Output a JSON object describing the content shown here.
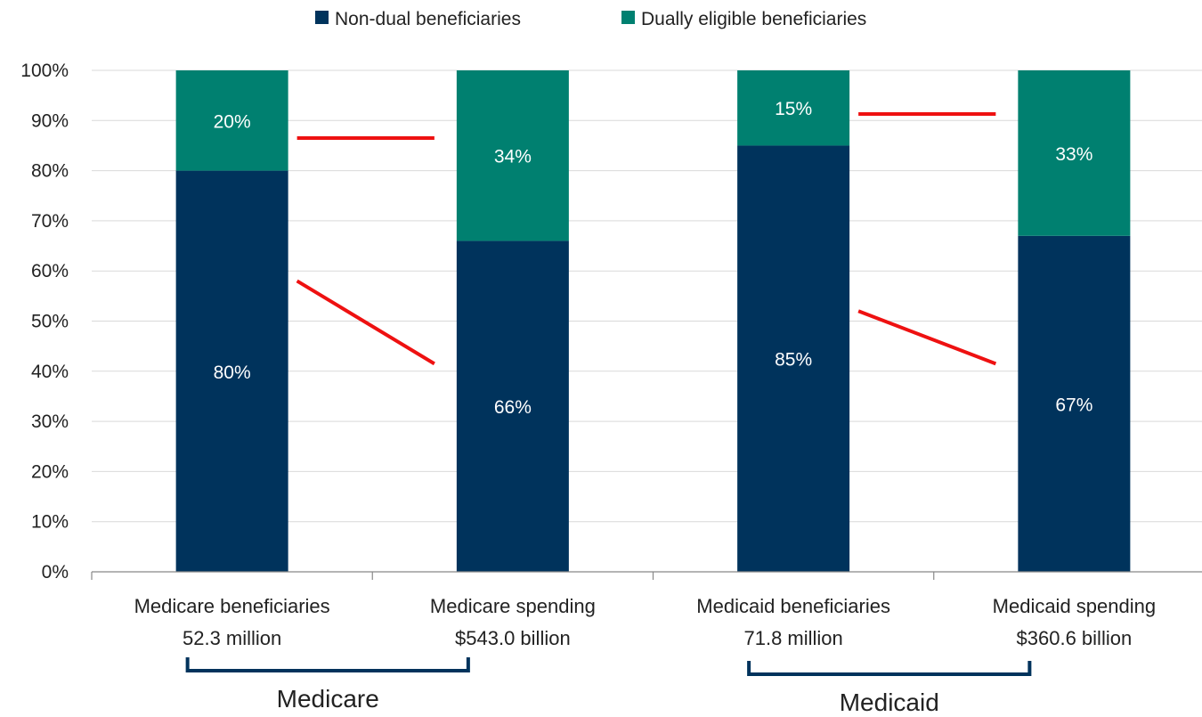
{
  "chart_data": {
    "type": "bar",
    "stacked": true,
    "normalized_percent": true,
    "categories": [
      {
        "line1": "Medicare beneficiaries",
        "line2": "52.3 million"
      },
      {
        "line1": "Medicare spending",
        "line2": "$543.0 billion"
      },
      {
        "line1": "Medicaid beneficiaries",
        "line2": "71.8 million"
      },
      {
        "line1": "Medicaid spending",
        "line2": "$360.6 billion"
      }
    ],
    "series": [
      {
        "name": "Non-dual beneficiaries",
        "color": "#00335c",
        "values": [
          80,
          66,
          85,
          67
        ],
        "labels": [
          "80%",
          "66%",
          "85%",
          "67%"
        ]
      },
      {
        "name": "Dually eligible beneficiaries",
        "color": "#008070",
        "values": [
          20,
          34,
          15,
          33
        ],
        "labels": [
          "20%",
          "34%",
          "15%",
          "33%"
        ]
      }
    ],
    "ylim": [
      0,
      100
    ],
    "yticks": [
      {
        "value": 0,
        "label": "0%"
      },
      {
        "value": 10,
        "label": "10%"
      },
      {
        "value": 20,
        "label": "20%"
      },
      {
        "value": 30,
        "label": "30%"
      },
      {
        "value": 40,
        "label": "40%"
      },
      {
        "value": 50,
        "label": "50%"
      },
      {
        "value": 60,
        "label": "60%"
      },
      {
        "value": 70,
        "label": "70%"
      },
      {
        "value": 80,
        "label": "80%"
      },
      {
        "value": 90,
        "label": "90%"
      },
      {
        "value": 100,
        "label": "100%"
      }
    ],
    "grid": true,
    "legend_position": "top-center",
    "groups": [
      {
        "name": "Medicare",
        "categories": [
          0,
          1
        ]
      },
      {
        "name": "Medicaid",
        "categories": [
          2,
          3
        ]
      }
    ],
    "annotation_color": "#ee1111",
    "annotations": [
      {
        "from": {
          "category": 0,
          "value": 86.5
        },
        "to": {
          "category": 1,
          "value": 86.5
        }
      },
      {
        "from": {
          "category": 0,
          "value": 58
        },
        "to": {
          "category": 1,
          "value": 41.5
        }
      },
      {
        "from": {
          "category": 2,
          "value": 91.3
        },
        "to": {
          "category": 3,
          "value": 91.3
        }
      },
      {
        "from": {
          "category": 2,
          "value": 52
        },
        "to": {
          "category": 3,
          "value": 41.5
        }
      }
    ]
  }
}
